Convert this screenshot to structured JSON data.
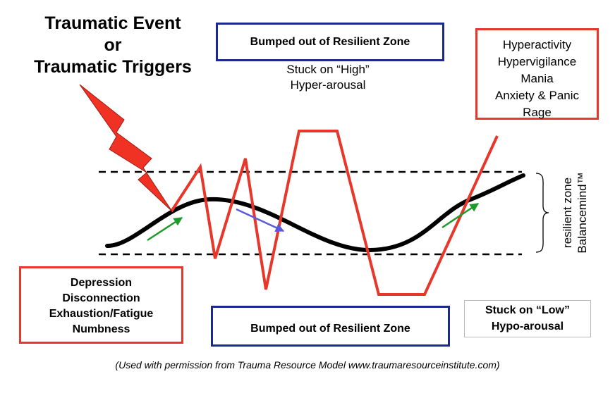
{
  "title_lines": [
    "Traumatic Event",
    "or",
    "Traumatic Triggers"
  ],
  "zone_top_label": "Bumped out of Resilient Zone",
  "zone_bottom_label": "Bumped out of Resilient Zone",
  "stuck_high": [
    "Stuck on “High”",
    "Hyper-arousal"
  ],
  "hyper_list": [
    "Hyperactivity",
    "Hypervigilance",
    "Mania",
    "Anxiety & Panic",
    "Rage"
  ],
  "hypo_box": [
    "Stuck on “Low”",
    "Hypo-arousal"
  ],
  "depression_list": [
    "Depression",
    "Disconnection",
    "Exhaustion/Fatigue",
    "Numbness"
  ],
  "side_label": [
    "resilient zone",
    "Balancemind™"
  ],
  "caption": "(Used with permission from Trauma Resource Model www.traumaresourceinstitute.com)",
  "colors": {
    "red": "#e8372a",
    "blue_border": "#1a2a8c",
    "green_arrow": "#1e9a2a",
    "blue_arrow": "#5a5adf",
    "black_curve": "#000000"
  }
}
